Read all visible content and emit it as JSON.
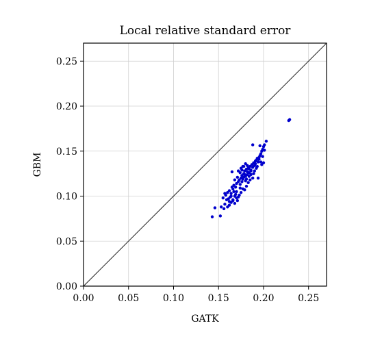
{
  "chart_data": {
    "type": "scatter",
    "title": "Local relative standard error",
    "xlabel": "GATK",
    "ylabel": "GBM",
    "xlim": [
      0.0,
      0.27
    ],
    "ylim": [
      0.0,
      0.27
    ],
    "xticks": [
      "0.00",
      "0.05",
      "0.10",
      "0.15",
      "0.20",
      "0.25"
    ],
    "yticks": [
      "0.00",
      "0.05",
      "0.10",
      "0.15",
      "0.20",
      "0.25"
    ],
    "grid": true,
    "reference_line": "y = x",
    "point_color": "#0000cc",
    "series": [
      {
        "values": [
          [
            0.143,
            0.077
          ],
          [
            0.146,
            0.087
          ],
          [
            0.152,
            0.078
          ],
          [
            0.153,
            0.088
          ],
          [
            0.156,
            0.086
          ],
          [
            0.157,
            0.091
          ],
          [
            0.16,
            0.088
          ],
          [
            0.162,
            0.094
          ],
          [
            0.164,
            0.093
          ],
          [
            0.166,
            0.095
          ],
          [
            0.168,
            0.092
          ],
          [
            0.17,
            0.098
          ],
          [
            0.172,
            0.099
          ],
          [
            0.158,
            0.101
          ],
          [
            0.16,
            0.104
          ],
          [
            0.162,
            0.106
          ],
          [
            0.164,
            0.103
          ],
          [
            0.166,
            0.108
          ],
          [
            0.167,
            0.112
          ],
          [
            0.169,
            0.11
          ],
          [
            0.17,
            0.114
          ],
          [
            0.172,
            0.116
          ],
          [
            0.173,
            0.118
          ],
          [
            0.174,
            0.113
          ],
          [
            0.175,
            0.12
          ],
          [
            0.176,
            0.123
          ],
          [
            0.177,
            0.119
          ],
          [
            0.178,
            0.125
          ],
          [
            0.179,
            0.128
          ],
          [
            0.18,
            0.122
          ],
          [
            0.181,
            0.13
          ],
          [
            0.182,
            0.127
          ],
          [
            0.183,
            0.131
          ],
          [
            0.184,
            0.126
          ],
          [
            0.185,
            0.133
          ],
          [
            0.186,
            0.129
          ],
          [
            0.187,
            0.135
          ],
          [
            0.188,
            0.132
          ],
          [
            0.189,
            0.137
          ],
          [
            0.19,
            0.134
          ],
          [
            0.191,
            0.139
          ],
          [
            0.192,
            0.14
          ],
          [
            0.193,
            0.142
          ],
          [
            0.194,
            0.138
          ],
          [
            0.195,
            0.143
          ],
          [
            0.196,
            0.145
          ],
          [
            0.197,
            0.147
          ],
          [
            0.198,
            0.15
          ],
          [
            0.199,
            0.152
          ],
          [
            0.2,
            0.155
          ],
          [
            0.201,
            0.157
          ],
          [
            0.203,
            0.161
          ],
          [
            0.196,
            0.156
          ],
          [
            0.188,
            0.157
          ],
          [
            0.165,
            0.127
          ],
          [
            0.168,
            0.118
          ],
          [
            0.171,
            0.121
          ],
          [
            0.174,
            0.126
          ],
          [
            0.176,
            0.129
          ],
          [
            0.178,
            0.133
          ],
          [
            0.18,
            0.136
          ],
          [
            0.182,
            0.134
          ],
          [
            0.184,
            0.13
          ],
          [
            0.186,
            0.124
          ],
          [
            0.188,
            0.12
          ],
          [
            0.19,
            0.128
          ],
          [
            0.192,
            0.131
          ],
          [
            0.194,
            0.12
          ],
          [
            0.198,
            0.135
          ],
          [
            0.2,
            0.137
          ],
          [
            0.173,
            0.101
          ],
          [
            0.175,
            0.104
          ],
          [
            0.177,
            0.108
          ],
          [
            0.179,
            0.107
          ],
          [
            0.181,
            0.111
          ],
          [
            0.183,
            0.115
          ],
          [
            0.185,
            0.118
          ],
          [
            0.171,
            0.095
          ],
          [
            0.169,
            0.102
          ],
          [
            0.163,
            0.099
          ],
          [
            0.161,
            0.097
          ],
          [
            0.159,
            0.096
          ],
          [
            0.155,
            0.098
          ],
          [
            0.157,
            0.103
          ],
          [
            0.165,
            0.11
          ],
          [
            0.167,
            0.105
          ],
          [
            0.174,
            0.109
          ],
          [
            0.176,
            0.116
          ],
          [
            0.178,
            0.121
          ],
          [
            0.18,
            0.117
          ],
          [
            0.182,
            0.124
          ],
          [
            0.184,
            0.122
          ],
          [
            0.186,
            0.128
          ],
          [
            0.189,
            0.125
          ],
          [
            0.191,
            0.136
          ],
          [
            0.193,
            0.133
          ],
          [
            0.195,
            0.141
          ],
          [
            0.197,
            0.138
          ],
          [
            0.199,
            0.144
          ],
          [
            0.201,
            0.151
          ],
          [
            0.172,
            0.128
          ],
          [
            0.175,
            0.131
          ],
          [
            0.177,
            0.133
          ],
          [
            0.179,
            0.124
          ],
          [
            0.181,
            0.119
          ],
          [
            0.17,
            0.105
          ],
          [
            0.168,
            0.1
          ],
          [
            0.166,
            0.096
          ],
          [
            0.164,
            0.1
          ],
          [
            0.162,
            0.09
          ],
          [
            0.228,
            0.184
          ],
          [
            0.229,
            0.185
          ]
        ]
      }
    ]
  }
}
